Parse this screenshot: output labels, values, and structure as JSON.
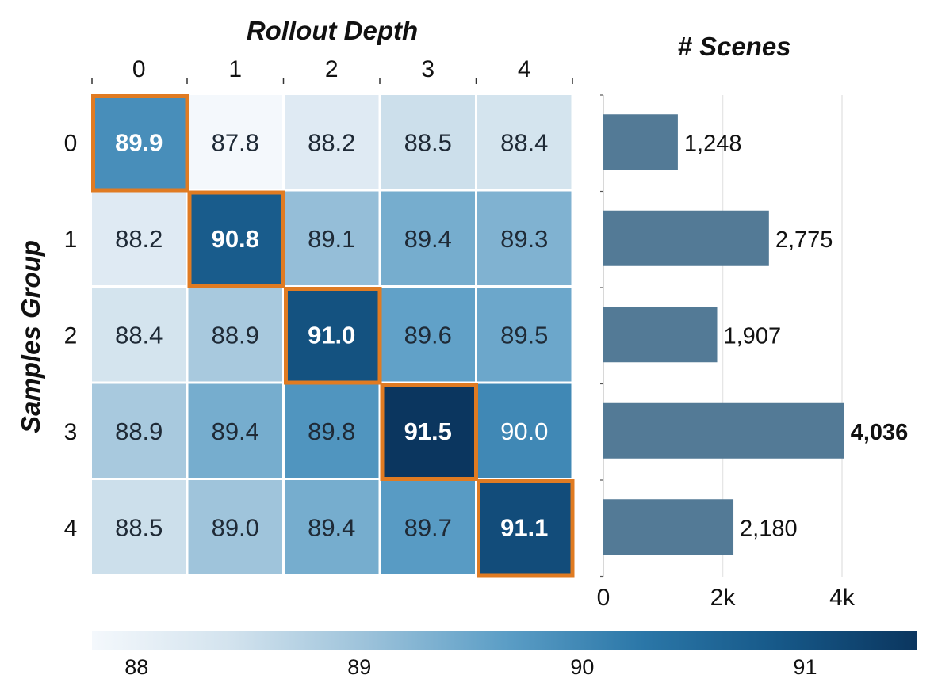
{
  "chart_data": [
    {
      "type": "heatmap",
      "title": "",
      "xlabel": "Rollout Depth",
      "ylabel": "Samples Group",
      "x_categories": [
        "0",
        "1",
        "2",
        "3",
        "4"
      ],
      "y_categories": [
        "0",
        "1",
        "2",
        "3",
        "4"
      ],
      "values": [
        [
          89.9,
          87.8,
          88.2,
          88.5,
          88.4
        ],
        [
          88.2,
          90.8,
          89.1,
          89.4,
          89.3
        ],
        [
          88.4,
          88.9,
          91.0,
          89.6,
          89.5
        ],
        [
          88.9,
          89.4,
          89.8,
          91.5,
          90.0
        ],
        [
          88.5,
          89.0,
          89.4,
          89.7,
          91.1
        ]
      ],
      "value_labels": [
        [
          "89.9",
          "87.8",
          "88.2",
          "88.5",
          "88.4"
        ],
        [
          "88.2",
          "90.8",
          "89.1",
          "89.4",
          "89.3"
        ],
        [
          "88.4",
          "88.9",
          "91.0",
          "89.6",
          "89.5"
        ],
        [
          "88.9",
          "89.4",
          "89.8",
          "91.5",
          "90.0"
        ],
        [
          "88.5",
          "89.0",
          "89.4",
          "89.7",
          "91.1"
        ]
      ],
      "highlighted": "diagonal",
      "highlight_color": "#E07B22",
      "colorbar": {
        "position": "bottom",
        "range": [
          87.8,
          91.5
        ],
        "ticks": [
          88,
          89,
          90,
          91
        ],
        "tick_labels": [
          "88",
          "89",
          "90",
          "91"
        ],
        "colormap": [
          "#F4F8FC",
          "#D3E3EE",
          "#9CC2DA",
          "#5C9EC6",
          "#2B77A8",
          "#165888",
          "#0B365F"
        ]
      }
    },
    {
      "type": "bar",
      "orientation": "horizontal",
      "title": "# Scenes",
      "categories": [
        "0",
        "1",
        "2",
        "3",
        "4"
      ],
      "values": [
        1248,
        2775,
        1907,
        4036,
        2180
      ],
      "value_labels": [
        "1,248",
        "2,775",
        "1,907",
        "4,036",
        "2,180"
      ],
      "max_label_bold": true,
      "xlim": [
        0,
        5300
      ],
      "x_ticks": [
        0,
        2000,
        4000
      ],
      "x_tick_labels": [
        "0",
        "2k",
        "4k"
      ],
      "grid": "vertical",
      "bar_color": "#537A96"
    }
  ]
}
